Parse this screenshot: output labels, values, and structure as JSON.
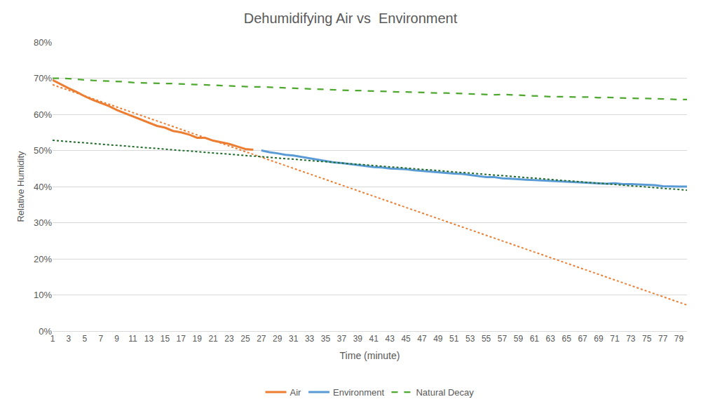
{
  "chart_data": {
    "type": "line",
    "title": "Dehumidifying Air vs  Environment",
    "x_label": "Time (minute)",
    "y_label": "Relative Humidity",
    "x": [
      1,
      2,
      3,
      4,
      5,
      6,
      7,
      8,
      9,
      10,
      11,
      12,
      13,
      14,
      15,
      16,
      17,
      18,
      19,
      20,
      21,
      22,
      23,
      24,
      25,
      26,
      27,
      28,
      29,
      30,
      31,
      32,
      33,
      34,
      35,
      36,
      37,
      38,
      39,
      40,
      41,
      42,
      43,
      44,
      45,
      46,
      47,
      48,
      49,
      50,
      51,
      52,
      53,
      54,
      55,
      56,
      57,
      58,
      59,
      60,
      61,
      62,
      63,
      64,
      65,
      66,
      67,
      68,
      69,
      70,
      71,
      72,
      73,
      74,
      75,
      76,
      77,
      78,
      79,
      80
    ],
    "xlim": [
      1,
      80
    ],
    "xticks": [
      1,
      3,
      5,
      7,
      9,
      11,
      13,
      15,
      17,
      19,
      21,
      23,
      25,
      27,
      29,
      31,
      33,
      35,
      37,
      39,
      41,
      43,
      45,
      47,
      49,
      51,
      53,
      55,
      57,
      59,
      61,
      63,
      65,
      67,
      69,
      71,
      73,
      75,
      77,
      79
    ],
    "ylim": [
      0,
      80
    ],
    "yticks": [
      {
        "value": 0,
        "label": "0%"
      },
      {
        "value": 10,
        "label": "10%"
      },
      {
        "value": 20,
        "label": "20%"
      },
      {
        "value": 30,
        "label": "30%"
      },
      {
        "value": 40,
        "label": "40%"
      },
      {
        "value": 50,
        "label": "50%"
      },
      {
        "value": 60,
        "label": "60%"
      },
      {
        "value": 70,
        "label": "70%"
      },
      {
        "value": 80,
        "label": "80%"
      }
    ],
    "grid": true,
    "legend": "bottom",
    "series": [
      {
        "name": "Air",
        "color": "#ed7d31",
        "line_style": "solid",
        "values": [
          69.5,
          68.3,
          67.2,
          66.2,
          65.0,
          64.0,
          63.2,
          62.3,
          61.2,
          60.3,
          59.4,
          58.6,
          57.6,
          56.8,
          56.3,
          55.4,
          55.0,
          54.4,
          53.5,
          53.5,
          52.7,
          52.2,
          51.8,
          51.1,
          50.4,
          50.2,
          null,
          null,
          null,
          null,
          null,
          null,
          null,
          null,
          null,
          null,
          null,
          null,
          null,
          null,
          null,
          null,
          null,
          null,
          null,
          null,
          null,
          null,
          null,
          null,
          null,
          null,
          null,
          null,
          null,
          null,
          null,
          null,
          null,
          null,
          null,
          null,
          null,
          null,
          null,
          null,
          null,
          null,
          null,
          null,
          null,
          null,
          null,
          null,
          null,
          null,
          null,
          null,
          null,
          null
        ]
      },
      {
        "name": "Environment",
        "color": "#5b9bd5",
        "line_style": "solid",
        "values": [
          null,
          null,
          null,
          null,
          null,
          null,
          null,
          null,
          null,
          null,
          null,
          null,
          null,
          null,
          null,
          null,
          null,
          null,
          null,
          null,
          null,
          null,
          null,
          null,
          null,
          null,
          50.0,
          49.5,
          49.2,
          48.8,
          48.6,
          48.2,
          47.8,
          47.5,
          47.0,
          46.7,
          46.5,
          46.2,
          46.0,
          45.6,
          45.4,
          45.3,
          45.0,
          44.9,
          44.8,
          44.5,
          44.3,
          44.2,
          44.0,
          43.8,
          43.6,
          43.5,
          43.2,
          42.8,
          42.6,
          42.6,
          42.3,
          42.2,
          42.0,
          41.9,
          41.8,
          41.7,
          41.5,
          41.5,
          41.4,
          41.3,
          41.2,
          41.1,
          41.0,
          40.8,
          40.9,
          40.7,
          40.7,
          40.6,
          40.5,
          40.4,
          40.1,
          40.0,
          40.0,
          40.0
        ]
      },
      {
        "name": "Natural Decay",
        "color": "#4ea72e",
        "line_style": "dash",
        "values": [
          70.0,
          70.0,
          69.9,
          69.7,
          69.5,
          69.4,
          69.3,
          69.2,
          69.2,
          69.0,
          68.8,
          68.7,
          68.6,
          68.5,
          68.5,
          68.5,
          68.4,
          68.3,
          68.3,
          68.2,
          68.1,
          68.0,
          67.9,
          67.8,
          67.7,
          67.6,
          67.6,
          67.5,
          67.4,
          67.3,
          67.2,
          67.1,
          67.0,
          67.0,
          66.9,
          66.8,
          66.7,
          66.6,
          66.6,
          66.5,
          66.5,
          66.4,
          66.3,
          66.2,
          66.2,
          66.1,
          66.0,
          66.0,
          65.9,
          65.9,
          65.8,
          65.7,
          65.6,
          65.6,
          65.5,
          65.4,
          65.5,
          65.4,
          65.2,
          65.1,
          65.0,
          65.0,
          64.9,
          64.9,
          64.8,
          64.8,
          64.8,
          64.8,
          64.6,
          64.7,
          64.6,
          64.5,
          64.4,
          64.4,
          64.4,
          64.3,
          64.2,
          64.1,
          64.1,
          64.1
        ]
      },
      {
        "color": "#ed7d31",
        "line_style": "dot",
        "x": [
          1,
          80
        ],
        "values": [
          68.2,
          7.2
        ]
      },
      {
        "color": "#1e6b2a",
        "line_style": "dot",
        "x": [
          1,
          80
        ],
        "values": [
          52.8,
          39.0
        ]
      }
    ]
  }
}
